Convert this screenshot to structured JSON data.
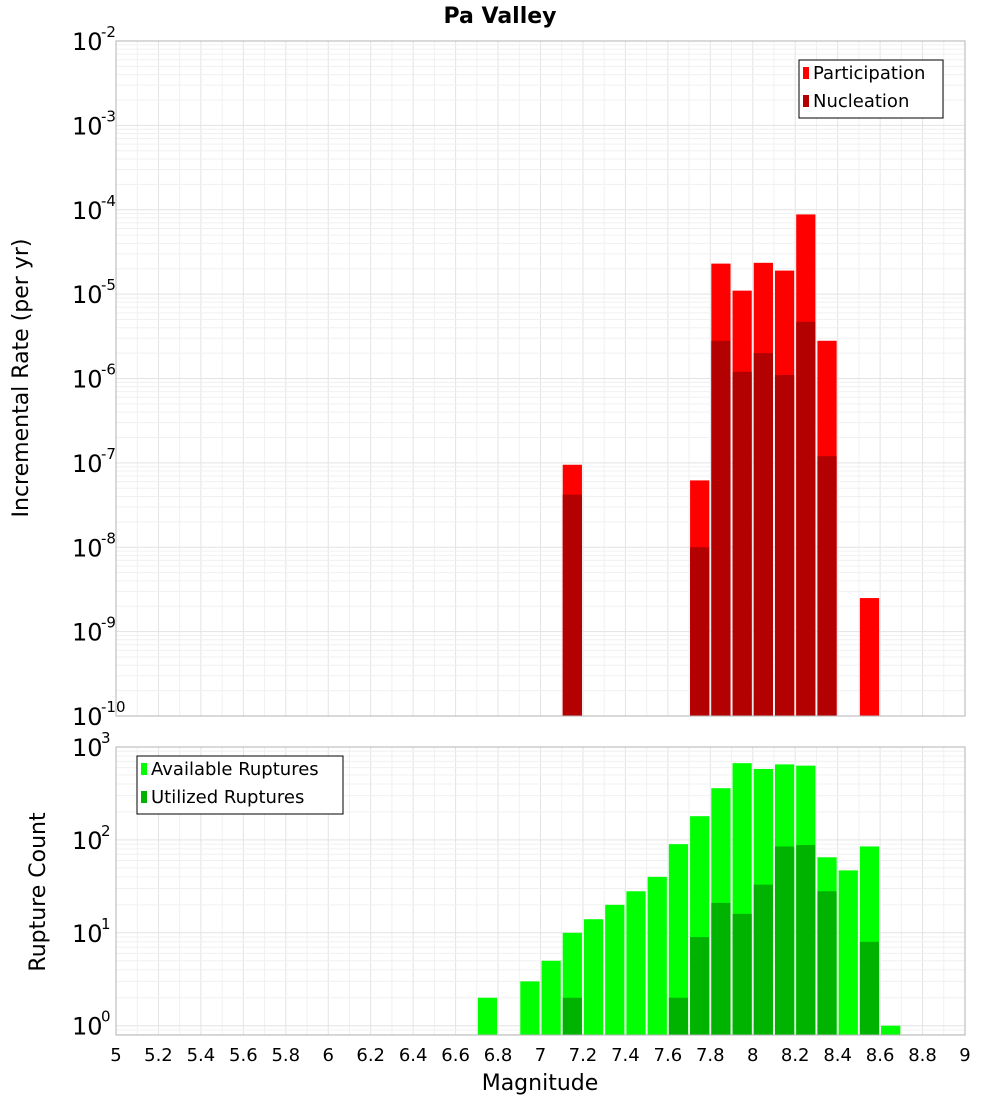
{
  "chart_data": {
    "type": "bar",
    "title": "Pa Valley",
    "xlabel": "Magnitude",
    "xlim": [
      5,
      9
    ],
    "xticks": [
      "5",
      "5.2",
      "5.4",
      "5.6",
      "5.8",
      "6",
      "6.2",
      "6.4",
      "6.6",
      "6.8",
      "7",
      "7.2",
      "7.4",
      "7.6",
      "7.8",
      "8",
      "8.2",
      "8.4",
      "8.6",
      "8.8",
      "9"
    ],
    "bin_width": 0.1,
    "panels": [
      {
        "name": "rate",
        "ylabel": "Incremental Rate (per yr)",
        "yscale": "log",
        "ylim_exp": [
          -10,
          -2
        ],
        "legend_position": "top-right",
        "series": [
          {
            "name": "Participation",
            "color": "#ff0000",
            "points": [
              [
                7.15,
                9.5e-08
              ],
              [
                7.75,
                6.2e-08
              ],
              [
                7.85,
                2.3e-05
              ],
              [
                7.95,
                1.1e-05
              ],
              [
                8.05,
                2.35e-05
              ],
              [
                8.15,
                1.9e-05
              ],
              [
                8.25,
                8.8e-05
              ],
              [
                8.35,
                2.8e-06
              ],
              [
                8.55,
                2.5e-09
              ]
            ]
          },
          {
            "name": "Nucleation",
            "color": "#b30000",
            "points": [
              [
                7.15,
                4.2e-08
              ],
              [
                7.75,
                1e-08
              ],
              [
                7.85,
                2.8e-06
              ],
              [
                7.95,
                1.2e-06
              ],
              [
                8.05,
                2e-06
              ],
              [
                8.15,
                1.1e-06
              ],
              [
                8.25,
                4.7e-06
              ],
              [
                8.35,
                1.2e-07
              ]
            ]
          }
        ]
      },
      {
        "name": "count",
        "ylabel": "Rupture Count",
        "yscale": "log",
        "ylim_exp": [
          -0.1,
          3
        ],
        "legend_position": "top-left",
        "series": [
          {
            "name": "Available Ruptures",
            "color": "#00ff00",
            "points": [
              [
                6.75,
                2
              ],
              [
                6.95,
                3
              ],
              [
                7.05,
                5
              ],
              [
                7.15,
                10
              ],
              [
                7.25,
                14
              ],
              [
                7.35,
                20
              ],
              [
                7.45,
                28
              ],
              [
                7.55,
                40
              ],
              [
                7.65,
                90
              ],
              [
                7.75,
                180
              ],
              [
                7.85,
                360
              ],
              [
                7.95,
                670
              ],
              [
                8.05,
                580
              ],
              [
                8.15,
                650
              ],
              [
                8.25,
                630
              ],
              [
                8.35,
                65
              ],
              [
                8.45,
                47
              ],
              [
                8.55,
                85
              ],
              [
                8.65,
                1
              ]
            ]
          },
          {
            "name": "Utilized Ruptures",
            "color": "#00b300",
            "points": [
              [
                7.15,
                2
              ],
              [
                7.65,
                2
              ],
              [
                7.75,
                9
              ],
              [
                7.85,
                21
              ],
              [
                7.95,
                16
              ],
              [
                8.05,
                33
              ],
              [
                8.15,
                85
              ],
              [
                8.25,
                88
              ],
              [
                8.35,
                28
              ],
              [
                8.55,
                8
              ]
            ]
          }
        ]
      }
    ]
  }
}
